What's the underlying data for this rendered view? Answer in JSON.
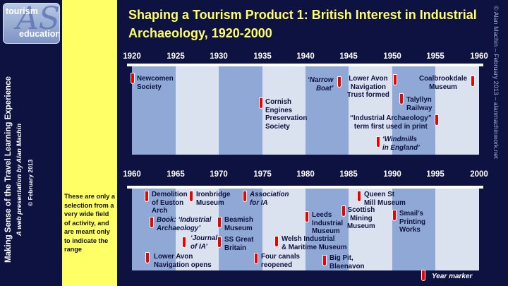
{
  "logo": {
    "line1": "tourism",
    "big": "AS",
    "line2": "education"
  },
  "sidebar": {
    "title": "Making Sense of the Travel Learning Experience",
    "subtitle": "A web presentation by  Alan Machin",
    "copyright": "© February 2013"
  },
  "right_credit": "© Alan Machin – February 2013 – alanmachinwork.net",
  "note": "These are only a selection from a very wide field of activity, and are meant only to indicate the range",
  "title": "Shaping a Tourism Product  1: British Interest in Industrial Archaeology, 1920-2000",
  "timeline1": {
    "years": [
      "1920",
      "1925",
      "1930",
      "1935",
      "1940",
      "1945",
      "1950",
      "1955",
      "1960"
    ],
    "events": [
      {
        "text": "Newcomen\nSociety",
        "italic": false
      },
      {
        "text": "Cornish\nEngines\nPreservation\nSociety",
        "italic": false
      },
      {
        "text": "‘Narrow\nBoat’",
        "italic": true
      },
      {
        "text": "Lower Avon\nNavigation\nTrust formed",
        "italic": false
      },
      {
        "text": "Coalbrookdale\nMuseum",
        "italic": false
      },
      {
        "text": "Talyllyn\nRailway",
        "italic": false
      },
      {
        "text": "“Industrial Archaeology”\nterm first used in print",
        "italic": false
      },
      {
        "text": "‘Windmills\nin England’",
        "italic": true
      }
    ]
  },
  "timeline2": {
    "years": [
      "1960",
      "1965",
      "1970",
      "1975",
      "1980",
      "1985",
      "1990",
      "1995",
      "2000"
    ],
    "events": [
      {
        "text": "Demolition\nof Euston\nArch",
        "italic": false
      },
      {
        "text": "Ironbridge\nMuseum",
        "italic": false
      },
      {
        "text": "Association\nfor IA",
        "italic": true
      },
      {
        "text": "Queen St\nMill Museum",
        "italic": false
      },
      {
        "text": "Scottish\nMining\nMuseum",
        "italic": false
      },
      {
        "text": "Leeds\nIndustrial\nMuseum",
        "italic": false
      },
      {
        "text": "Smail’s\nPrinting\nWorks",
        "italic": false
      },
      {
        "text": "Book: ‘Industrial\nArchaeology’",
        "italic": true
      },
      {
        "text": "Beamish\nMuseum",
        "italic": false
      },
      {
        "text": "‘Journal\nof IA’",
        "italic": true
      },
      {
        "text": "SS Great\nBritain",
        "italic": false
      },
      {
        "text": "Welsh Industrial\n& Maritime Museum",
        "italic": false
      },
      {
        "text": "Lower Avon\nNavigation opens",
        "italic": false
      },
      {
        "text": "Four canals\nreopened",
        "italic": false
      },
      {
        "text": "Big Pit,\nBlaenavon",
        "italic": false
      }
    ]
  },
  "legend": "Year marker",
  "colors": {
    "background": "#0e1240",
    "title": "#ffff66",
    "note_panel": "#ffff66",
    "band_light": "#dae2f0",
    "band_dark": "#8fa8d6",
    "marker": "#e00000"
  }
}
